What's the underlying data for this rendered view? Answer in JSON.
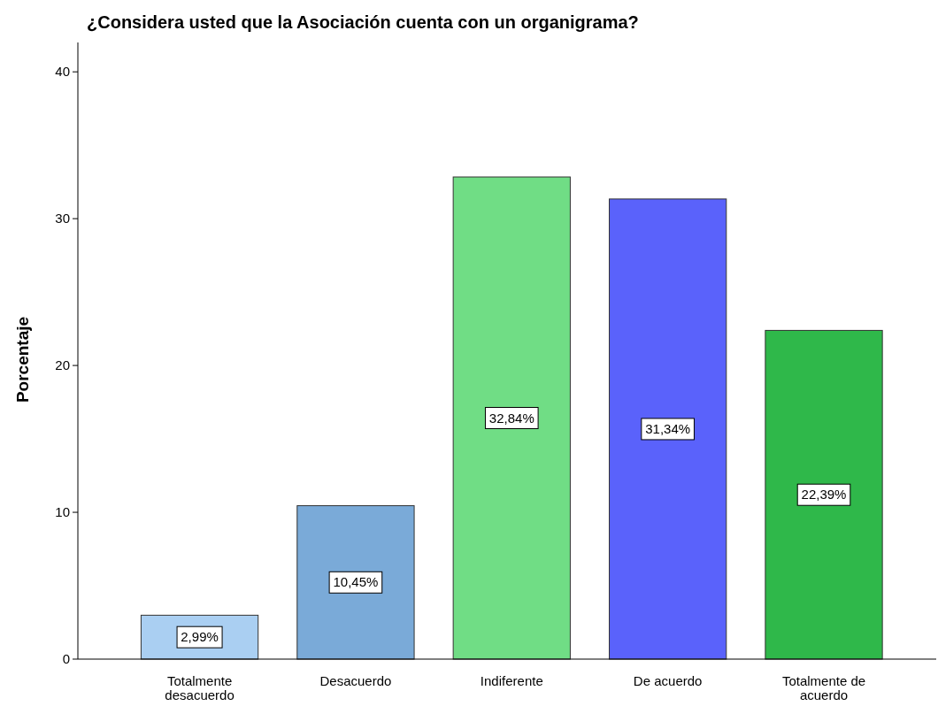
{
  "chart_data": {
    "type": "bar",
    "title": "¿Considera usted que la Asociación cuenta con un organigrama?",
    "ylabel": "Porcentaje",
    "categories": [
      "Totalmente desacuerdo",
      "Desacuerdo",
      "Indiferente",
      "De acuerdo",
      "Totalmente de acuerdo"
    ],
    "values": [
      2.99,
      10.45,
      32.84,
      31.34,
      22.39
    ],
    "value_labels": [
      "2,99%",
      "10,45%",
      "32,84%",
      "31,34%",
      "22,39%"
    ],
    "colors": [
      "#aacff2",
      "#7aaad8",
      "#70dd85",
      "#5a62fb",
      "#2fb84a"
    ],
    "ylim": [
      0,
      42
    ],
    "yticks": [
      0,
      10,
      20,
      30,
      40
    ],
    "grid": false
  }
}
